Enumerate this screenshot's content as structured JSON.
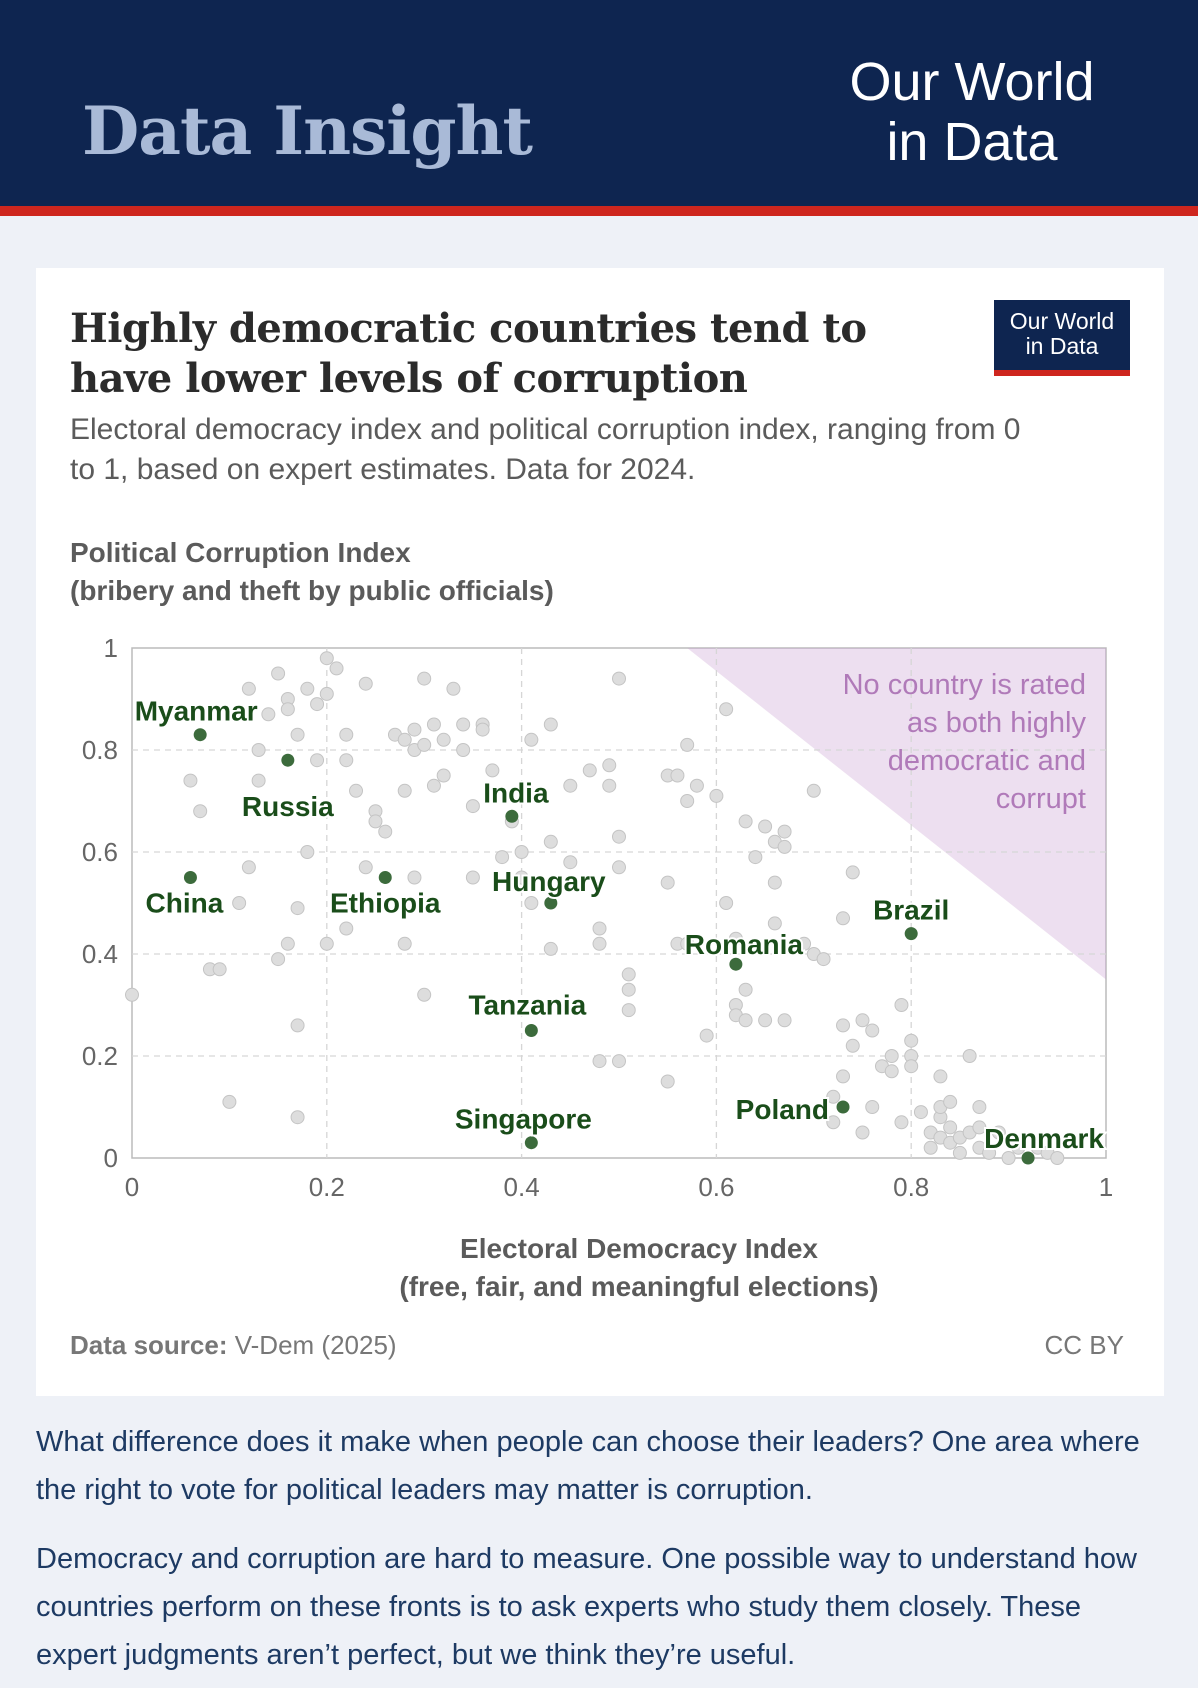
{
  "header": {
    "insight_label": "Data Insight",
    "brand_line1": "Our World",
    "brand_line2": "in Data",
    "colors": {
      "banner": "#0e2550",
      "stripe": "#ce261e"
    }
  },
  "card": {
    "title": "Highly democratic countries tend to have lower levels of corruption",
    "subtitle": "Electoral democracy index and political corruption index, ranging from 0 to 1, based on expert estimates. Data for 2024.",
    "logo_line1": "Our World",
    "logo_line2": "in Data",
    "source_label": "Data source:",
    "source_value": "V-Dem (2025)",
    "license": "CC BY"
  },
  "chart_data": {
    "type": "scatter",
    "ylabel_line1": "Political Corruption Index",
    "ylabel_line2": "(bribery and theft by public officials)",
    "xlabel_line1": "Electoral Democracy Index",
    "xlabel_line2": "(free, fair, and meaningful elections)",
    "xlim": [
      0,
      1
    ],
    "ylim": [
      0,
      1
    ],
    "x_ticks": [
      "0",
      "0.2",
      "0.4",
      "0.6",
      "0.8",
      "1"
    ],
    "y_ticks": [
      "0",
      "0.2",
      "0.4",
      "0.6",
      "0.8",
      "1"
    ],
    "grid": true,
    "annotation": {
      "lines": [
        "No country is rated",
        "as both highly",
        "democratic and",
        "corrupt"
      ],
      "region": [
        [
          0.57,
          1
        ],
        [
          1,
          1
        ],
        [
          1,
          0.35
        ]
      ],
      "color": "#c79bd1"
    },
    "colors": {
      "highlight": "#3c6b3c",
      "label": "#1a4d1a",
      "background_point": "#dddddd"
    },
    "highlighted": [
      {
        "name": "Myanmar",
        "x": 0.07,
        "y": 0.83
      },
      {
        "name": "Russia",
        "x": 0.16,
        "y": 0.78
      },
      {
        "name": "India",
        "x": 0.39,
        "y": 0.67
      },
      {
        "name": "China",
        "x": 0.06,
        "y": 0.55
      },
      {
        "name": "Ethiopia",
        "x": 0.26,
        "y": 0.55
      },
      {
        "name": "Hungary",
        "x": 0.43,
        "y": 0.5
      },
      {
        "name": "Brazil",
        "x": 0.8,
        "y": 0.44
      },
      {
        "name": "Romania",
        "x": 0.62,
        "y": 0.38
      },
      {
        "name": "Tanzania",
        "x": 0.41,
        "y": 0.25
      },
      {
        "name": "Poland",
        "x": 0.73,
        "y": 0.1
      },
      {
        "name": "Singapore",
        "x": 0.41,
        "y": 0.03
      },
      {
        "name": "Denmark",
        "x": 0.92,
        "y": 0.0
      }
    ],
    "points": [
      [
        0.0,
        0.32
      ],
      [
        0.06,
        0.74
      ],
      [
        0.07,
        0.68
      ],
      [
        0.08,
        0.37
      ],
      [
        0.09,
        0.37
      ],
      [
        0.1,
        0.11
      ],
      [
        0.11,
        0.5
      ],
      [
        0.12,
        0.92
      ],
      [
        0.12,
        0.57
      ],
      [
        0.13,
        0.8
      ],
      [
        0.13,
        0.74
      ],
      [
        0.14,
        0.87
      ],
      [
        0.15,
        0.95
      ],
      [
        0.15,
        0.39
      ],
      [
        0.16,
        0.42
      ],
      [
        0.16,
        0.9
      ],
      [
        0.16,
        0.88
      ],
      [
        0.17,
        0.83
      ],
      [
        0.17,
        0.49
      ],
      [
        0.17,
        0.26
      ],
      [
        0.17,
        0.08
      ],
      [
        0.18,
        0.92
      ],
      [
        0.18,
        0.6
      ],
      [
        0.19,
        0.89
      ],
      [
        0.19,
        0.78
      ],
      [
        0.2,
        0.98
      ],
      [
        0.2,
        0.91
      ],
      [
        0.2,
        0.42
      ],
      [
        0.21,
        0.96
      ],
      [
        0.22,
        0.83
      ],
      [
        0.22,
        0.78
      ],
      [
        0.22,
        0.45
      ],
      [
        0.23,
        0.72
      ],
      [
        0.24,
        0.93
      ],
      [
        0.24,
        0.57
      ],
      [
        0.25,
        0.68
      ],
      [
        0.25,
        0.66
      ],
      [
        0.26,
        0.64
      ],
      [
        0.27,
        0.83
      ],
      [
        0.28,
        0.82
      ],
      [
        0.28,
        0.72
      ],
      [
        0.28,
        0.42
      ],
      [
        0.29,
        0.8
      ],
      [
        0.29,
        0.84
      ],
      [
        0.29,
        0.55
      ],
      [
        0.3,
        0.94
      ],
      [
        0.3,
        0.81
      ],
      [
        0.3,
        0.32
      ],
      [
        0.31,
        0.85
      ],
      [
        0.31,
        0.73
      ],
      [
        0.32,
        0.82
      ],
      [
        0.32,
        0.75
      ],
      [
        0.33,
        0.92
      ],
      [
        0.34,
        0.85
      ],
      [
        0.34,
        0.8
      ],
      [
        0.35,
        0.69
      ],
      [
        0.35,
        0.55
      ],
      [
        0.36,
        0.85
      ],
      [
        0.36,
        0.84
      ],
      [
        0.37,
        0.76
      ],
      [
        0.38,
        0.59
      ],
      [
        0.39,
        0.66
      ],
      [
        0.4,
        0.6
      ],
      [
        0.4,
        0.55
      ],
      [
        0.41,
        0.82
      ],
      [
        0.41,
        0.5
      ],
      [
        0.43,
        0.85
      ],
      [
        0.43,
        0.62
      ],
      [
        0.43,
        0.41
      ],
      [
        0.45,
        0.73
      ],
      [
        0.45,
        0.58
      ],
      [
        0.47,
        0.76
      ],
      [
        0.48,
        0.19
      ],
      [
        0.48,
        0.45
      ],
      [
        0.48,
        0.42
      ],
      [
        0.49,
        0.73
      ],
      [
        0.49,
        0.77
      ],
      [
        0.5,
        0.94
      ],
      [
        0.5,
        0.19
      ],
      [
        0.5,
        0.63
      ],
      [
        0.5,
        0.57
      ],
      [
        0.51,
        0.36
      ],
      [
        0.51,
        0.33
      ],
      [
        0.51,
        0.29
      ],
      [
        0.55,
        0.75
      ],
      [
        0.55,
        0.54
      ],
      [
        0.55,
        0.15
      ],
      [
        0.56,
        0.75
      ],
      [
        0.56,
        0.42
      ],
      [
        0.57,
        0.81
      ],
      [
        0.57,
        0.7
      ],
      [
        0.57,
        0.42
      ],
      [
        0.58,
        0.73
      ],
      [
        0.59,
        0.24
      ],
      [
        0.6,
        0.71
      ],
      [
        0.61,
        0.88
      ],
      [
        0.61,
        0.5
      ],
      [
        0.62,
        0.3
      ],
      [
        0.62,
        0.28
      ],
      [
        0.62,
        0.43
      ],
      [
        0.63,
        0.66
      ],
      [
        0.63,
        0.33
      ],
      [
        0.63,
        0.27
      ],
      [
        0.64,
        0.59
      ],
      [
        0.65,
        0.65
      ],
      [
        0.65,
        0.27
      ],
      [
        0.66,
        0.62
      ],
      [
        0.66,
        0.54
      ],
      [
        0.66,
        0.46
      ],
      [
        0.67,
        0.64
      ],
      [
        0.67,
        0.61
      ],
      [
        0.67,
        0.27
      ],
      [
        0.69,
        0.42
      ],
      [
        0.7,
        0.72
      ],
      [
        0.7,
        0.4
      ],
      [
        0.71,
        0.39
      ],
      [
        0.72,
        0.12
      ],
      [
        0.72,
        0.07
      ],
      [
        0.73,
        0.47
      ],
      [
        0.73,
        0.26
      ],
      [
        0.73,
        0.16
      ],
      [
        0.74,
        0.22
      ],
      [
        0.74,
        0.56
      ],
      [
        0.75,
        0.05
      ],
      [
        0.75,
        0.27
      ],
      [
        0.76,
        0.25
      ],
      [
        0.76,
        0.1
      ],
      [
        0.77,
        0.18
      ],
      [
        0.78,
        0.17
      ],
      [
        0.78,
        0.2
      ],
      [
        0.79,
        0.07
      ],
      [
        0.79,
        0.3
      ],
      [
        0.8,
        0.23
      ],
      [
        0.8,
        0.2
      ],
      [
        0.8,
        0.18
      ],
      [
        0.81,
        0.09
      ],
      [
        0.82,
        0.05
      ],
      [
        0.82,
        0.02
      ],
      [
        0.83,
        0.08
      ],
      [
        0.83,
        0.16
      ],
      [
        0.83,
        0.04
      ],
      [
        0.83,
        0.1
      ],
      [
        0.84,
        0.11
      ],
      [
        0.84,
        0.06
      ],
      [
        0.84,
        0.03
      ],
      [
        0.85,
        0.04
      ],
      [
        0.85,
        0.01
      ],
      [
        0.86,
        0.2
      ],
      [
        0.86,
        0.05
      ],
      [
        0.87,
        0.02
      ],
      [
        0.87,
        0.1
      ],
      [
        0.87,
        0.06
      ],
      [
        0.88,
        0.01
      ],
      [
        0.89,
        0.05
      ],
      [
        0.9,
        0.0
      ],
      [
        0.91,
        0.02
      ],
      [
        0.93,
        0.02
      ],
      [
        0.94,
        0.01
      ],
      [
        0.95,
        0.0
      ]
    ]
  },
  "paragraphs": [
    "What difference does it make when people can choose their leaders? One area where the right to vote for political leaders may matter is corruption.",
    "Democracy and corruption are hard to measure. One possible way to understand how countries perform on these fronts is to ask experts who study them closely. These expert judgments aren’t perfect, but we think they’re useful."
  ]
}
